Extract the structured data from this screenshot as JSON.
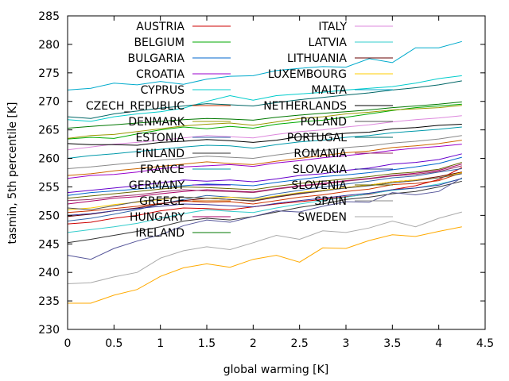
{
  "chart_data": {
    "type": "line",
    "title": "",
    "xlabel": "global warming [K]",
    "ylabel": "tasmin, 5th percentile [K]",
    "xlim": [
      0,
      4.5
    ],
    "ylim": [
      230,
      285
    ],
    "xticks": [
      "0",
      "0.5",
      "1",
      "1.5",
      "2",
      "2.5",
      "3",
      "3.5",
      "4",
      "4.5"
    ],
    "yticks": [
      "230",
      "235",
      "240",
      "245",
      "250",
      "255",
      "260",
      "265",
      "270",
      "275",
      "280",
      "285"
    ],
    "legend_position": "inside-top, two columns",
    "x": [
      0,
      0.25,
      0.5,
      0.75,
      1.0,
      1.25,
      1.5,
      1.75,
      2.0,
      2.25,
      2.5,
      2.75,
      3.0,
      3.25,
      3.5,
      3.75,
      4.0,
      4.25
    ],
    "series": [
      {
        "name": "AUSTRIA",
        "color": "#cc0000",
        "values": [
          248.5,
          248.8,
          249.5,
          250.0,
          250.8,
          251.3,
          251.2,
          251.0,
          251.5,
          252.0,
          252.4,
          252.8,
          253.3,
          253.7,
          254.5,
          255.2,
          256.3,
          258.4
        ]
      },
      {
        "name": "BELGIUM",
        "color": "#00aa00",
        "values": [
          263.4,
          263.7,
          263.5,
          264.3,
          265.0,
          265.5,
          265.2,
          265.6,
          265.3,
          266.0,
          266.4,
          266.7,
          267.2,
          267.8,
          268.4,
          268.9,
          269.2,
          269.5
        ]
      },
      {
        "name": "BULGARIA",
        "color": "#0066cc",
        "values": [
          253.5,
          254.0,
          254.3,
          254.6,
          255.0,
          255.2,
          255.5,
          255.4,
          255.2,
          255.8,
          256.3,
          256.8,
          257.1,
          257.5,
          258.0,
          258.5,
          259.1,
          260.2
        ]
      },
      {
        "name": "CROATIA",
        "color": "#9900cc",
        "values": [
          256.5,
          257.0,
          257.2,
          257.6,
          258.2,
          258.5,
          258.7,
          258.9,
          258.6,
          259.2,
          259.6,
          260.1,
          260.5,
          260.9,
          261.4,
          261.8,
          262.1,
          262.5
        ]
      },
      {
        "name": "CYPRUS",
        "color": "#00cccc",
        "values": [
          266.8,
          266.5,
          267.3,
          267.8,
          268.2,
          268.8,
          270.0,
          271.0,
          270.2,
          271.0,
          271.3,
          271.6,
          272.0,
          272.3,
          272.6,
          273.2,
          274.0,
          274.5
        ]
      },
      {
        "name": "CZECH_REPUBLIC",
        "color": "#cc3300",
        "values": [
          250.5,
          250.8,
          251.2,
          251.6,
          252.1,
          252.5,
          252.3,
          252.4,
          252.0,
          252.6,
          253.2,
          253.6,
          254.2,
          254.6,
          255.4,
          255.6,
          256.1,
          257.5
        ]
      },
      {
        "name": "DENMARK",
        "color": "#999900",
        "values": [
          263.5,
          264.0,
          264.2,
          264.7,
          265.2,
          265.7,
          266.0,
          266.2,
          265.8,
          266.4,
          267.0,
          267.3,
          267.8,
          268.1,
          268.5,
          268.7,
          268.9,
          269.3
        ]
      },
      {
        "name": "ESTONIA",
        "color": "#3366aa",
        "values": [
          249.0,
          249.5,
          250.2,
          251.0,
          252.0,
          252.8,
          253.5,
          253.2,
          253.0,
          253.8,
          254.4,
          255.0,
          255.5,
          256.0,
          256.6,
          256.9,
          257.6,
          258.2
        ]
      },
      {
        "name": "FINLAND",
        "color": "#333333",
        "values": [
          245.2,
          245.8,
          246.5,
          247.2,
          248.0,
          249.0,
          249.5,
          249.2,
          249.8,
          250.6,
          251.4,
          252.0,
          252.8,
          253.2,
          253.8,
          254.2,
          255.0,
          256.0
        ]
      },
      {
        "name": "FRANCE",
        "color": "#0099aa",
        "values": [
          260.0,
          260.5,
          260.8,
          261.2,
          261.6,
          262.0,
          262.3,
          262.2,
          261.8,
          262.4,
          262.9,
          263.2,
          263.7,
          264.0,
          264.5,
          264.8,
          265.1,
          265.5
        ]
      },
      {
        "name": "GERMANY",
        "color": "#6600cc",
        "values": [
          254.0,
          254.4,
          254.8,
          255.2,
          255.7,
          256.2,
          256.0,
          256.2,
          255.9,
          256.4,
          257.0,
          257.3,
          257.9,
          258.3,
          259.0,
          259.3,
          259.8,
          260.8
        ]
      },
      {
        "name": "GREECE",
        "color": "#cc6600",
        "values": [
          257.0,
          257.3,
          257.8,
          258.2,
          258.6,
          259.0,
          259.4,
          259.1,
          258.9,
          259.5,
          260.0,
          260.5,
          261.0,
          261.3,
          261.9,
          262.2,
          262.6,
          263.2
        ]
      },
      {
        "name": "HUNGARY",
        "color": "#aa0066",
        "values": [
          252.0,
          252.5,
          253.0,
          253.3,
          253.8,
          254.2,
          254.5,
          254.3,
          254.1,
          254.7,
          255.2,
          255.6,
          256.1,
          256.5,
          257.0,
          257.4,
          257.9,
          259.0
        ]
      },
      {
        "name": "IRELAND",
        "color": "#007700",
        "values": [
          265.3,
          265.6,
          265.9,
          266.2,
          266.5,
          266.8,
          267.0,
          266.9,
          266.7,
          267.2,
          267.6,
          267.9,
          268.2,
          268.5,
          268.9,
          269.2,
          269.5,
          269.9
        ]
      },
      {
        "name": "ITALY",
        "color": "#dd88dd",
        "values": [
          261.5,
          262.0,
          262.5,
          262.8,
          263.2,
          263.6,
          264.0,
          263.8,
          263.6,
          264.2,
          264.7,
          265.0,
          265.5,
          265.9,
          266.4,
          266.8,
          267.1,
          267.5
        ]
      },
      {
        "name": "LATVIA",
        "color": "#33cccc",
        "values": [
          247.0,
          247.5,
          248.0,
          248.6,
          249.5,
          250.3,
          251.0,
          250.7,
          250.5,
          251.3,
          252.0,
          252.6,
          253.2,
          253.8,
          254.4,
          254.8,
          255.5,
          256.4
        ]
      },
      {
        "name": "LITHUANIA",
        "color": "#660000",
        "values": [
          249.8,
          250.2,
          250.8,
          251.3,
          252.0,
          252.6,
          253.0,
          252.8,
          252.5,
          253.2,
          253.8,
          254.3,
          254.9,
          255.3,
          255.9,
          256.2,
          256.8,
          257.6
        ]
      },
      {
        "name": "LUXEMBOURG",
        "color": "#ffcc00",
        "values": [
          251.0,
          251.3,
          251.9,
          252.3,
          252.8,
          253.2,
          253.0,
          253.2,
          252.8,
          253.4,
          254.0,
          254.4,
          254.9,
          255.3,
          255.9,
          256.2,
          256.6,
          257.5
        ]
      },
      {
        "name": "MALTA",
        "color": "#00aacc",
        "values": [
          272.0,
          272.3,
          273.2,
          272.9,
          273.5,
          273.0,
          273.9,
          274.4,
          274.5,
          275.4,
          275.8,
          276.1,
          276.0,
          277.5,
          276.8,
          279.4,
          279.4,
          280.5
        ]
      },
      {
        "name": "NETHERLANDS",
        "color": "#000000",
        "values": [
          262.6,
          262.4,
          262.4,
          262.3,
          262.8,
          263.0,
          263.3,
          263.1,
          262.8,
          263.2,
          263.8,
          264.0,
          264.4,
          264.6,
          265.2,
          265.4,
          265.8,
          266.0
        ]
      },
      {
        "name": "POLAND",
        "color": "#555555",
        "values": [
          251.3,
          251.0,
          251.7,
          252.4,
          252.9,
          253.2,
          253.0,
          252.8,
          252.6,
          253.3,
          253.9,
          254.3,
          254.8,
          255.2,
          255.7,
          256.1,
          256.6,
          257.3
        ]
      },
      {
        "name": "PORTUGAL",
        "color": "#006666",
        "values": [
          267.3,
          267.0,
          267.8,
          268.3,
          268.8,
          269.2,
          269.6,
          269.4,
          269.2,
          269.8,
          270.3,
          270.7,
          271.1,
          271.5,
          272.0,
          272.4,
          272.9,
          273.6
        ]
      },
      {
        "name": "ROMANIA",
        "color": "#993366",
        "values": [
          252.6,
          252.8,
          253.3,
          253.6,
          254.1,
          254.5,
          254.3,
          254.2,
          254.0,
          254.6,
          255.1,
          255.5,
          256.0,
          256.4,
          256.9,
          257.2,
          257.7,
          258.7
        ]
      },
      {
        "name": "SLOVAKIA",
        "color": "#333399",
        "values": [
          250.0,
          250.3,
          250.8,
          251.2,
          251.6,
          252.0,
          251.9,
          251.7,
          251.5,
          252.1,
          252.6,
          253.0,
          253.5,
          253.9,
          254.5,
          254.8,
          255.3,
          256.5
        ]
      },
      {
        "name": "SLOVENIA",
        "color": "#666600",
        "values": [
          253.0,
          253.4,
          253.8,
          254.2,
          254.6,
          255.0,
          254.9,
          254.7,
          254.5,
          255.1,
          255.6,
          256.0,
          256.4,
          256.8,
          257.3,
          257.6,
          258.1,
          259.3
        ]
      },
      {
        "name": "SPAIN",
        "color": "#888888",
        "values": [
          258.2,
          258.5,
          258.9,
          259.3,
          259.7,
          260.0,
          260.4,
          260.2,
          260.0,
          260.6,
          261.1,
          261.4,
          261.9,
          262.2,
          262.7,
          263.0,
          263.4,
          264.0
        ]
      },
      {
        "name": "SWEDEN",
        "color": "#aaaaaa",
        "values": [
          238.0,
          238.2,
          239.2,
          240.0,
          242.5,
          243.8,
          244.5,
          244.0,
          245.2,
          246.5,
          245.8,
          247.3,
          247.0,
          247.8,
          249.0,
          248.0,
          249.5,
          250.6
        ]
      },
      {
        "name": "",
        "color": "#ffaa00",
        "values": [
          234.6,
          234.6,
          236.0,
          237.0,
          239.3,
          240.8,
          241.5,
          240.9,
          242.3,
          243.0,
          241.8,
          244.3,
          244.2,
          245.6,
          246.6,
          246.3,
          247.2,
          248.0
        ]
      },
      {
        "name": "",
        "color": "#555599",
        "values": [
          243.0,
          242.3,
          244.2,
          245.5,
          246.6,
          248.2,
          249.2,
          248.8,
          249.8,
          250.8,
          250.6,
          251.6,
          252.4,
          252.3,
          254.0,
          253.6,
          254.2,
          256.6
        ]
      }
    ]
  }
}
